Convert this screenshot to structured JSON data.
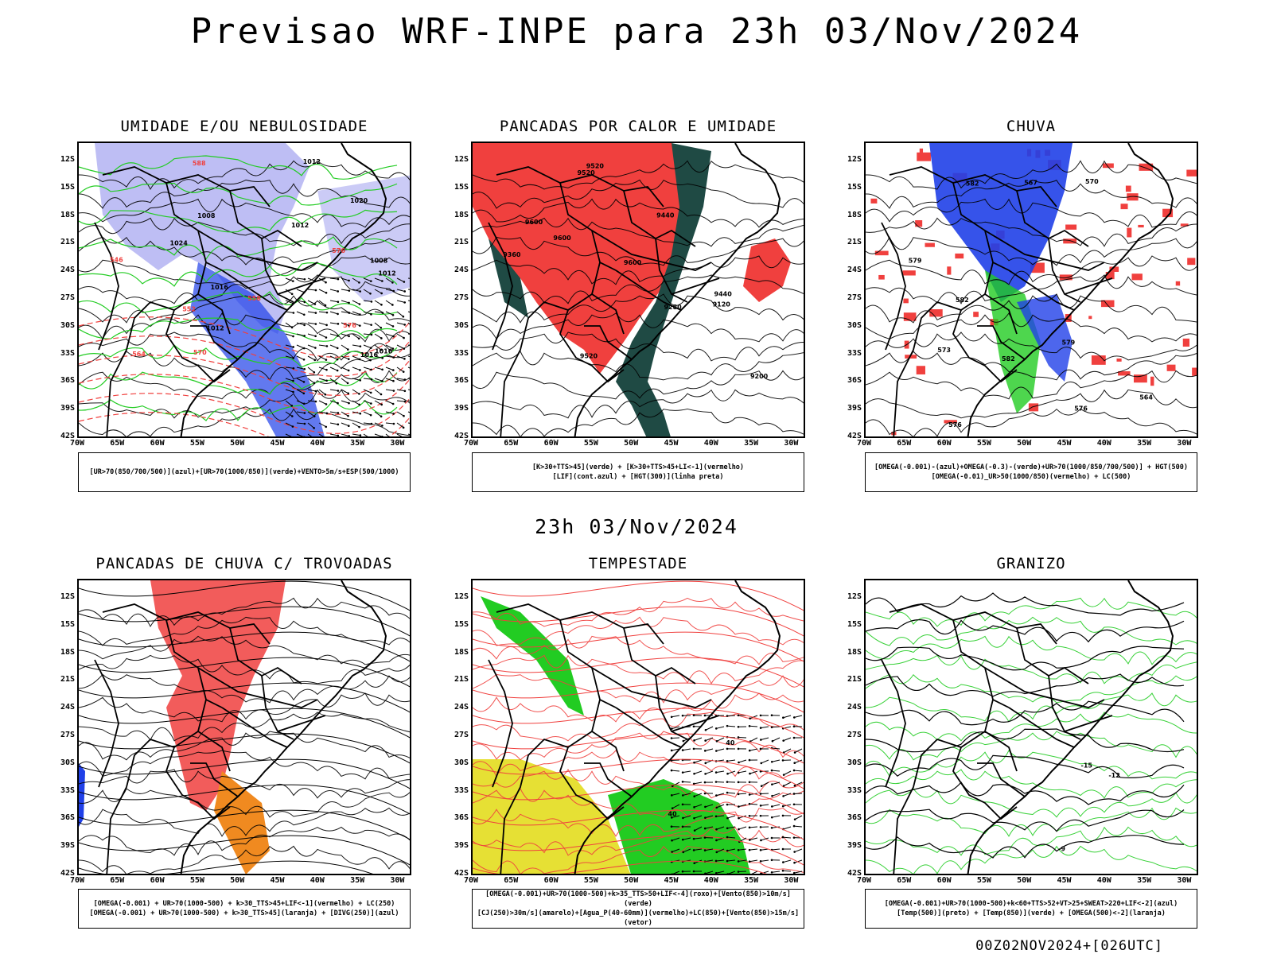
{
  "header": {
    "title": "Previsao WRF-INPE  para 23h 03/Nov/2024",
    "subtitle": "23h 03/Nov/2024"
  },
  "axes": {
    "lat_labels": [
      "12S",
      "15S",
      "18S",
      "21S",
      "24S",
      "27S",
      "30S",
      "33S",
      "36S",
      "39S",
      "42S"
    ],
    "lon_labels": [
      "70W",
      "65W",
      "60W",
      "55W",
      "50W",
      "45W",
      "40W",
      "35W",
      "30W"
    ]
  },
  "panels": [
    {
      "title": "UMIDADE E/OU NEBULOSIDADE",
      "legend": [
        "[UR>70(850/700/500)](azul)+[UR>70(1000/850)](verde)+VENTO>5m/s+ESP(500/1000)"
      ],
      "contour_labels": [
        "1008",
        "1008",
        "1012",
        "1012",
        "1016",
        "1016",
        "1012",
        "1012",
        "1016",
        "1020",
        "1024",
        "576",
        "576",
        "570",
        "564",
        "558",
        "552",
        "546",
        "588"
      ]
    },
    {
      "title": "PANCADAS POR CALOR E UMIDADE",
      "legend": [
        "[K>30+TTS>45](verde) + [K>30+TTS>45+LI<-1](vermelho)",
        "[LIF](cont.azul) + [HGT(300)](linha preta)"
      ],
      "contour_labels": [
        "9600",
        "9600",
        "9600",
        "9520",
        "9520",
        "9440",
        "9360",
        "9280",
        "9200",
        "9120",
        "9520",
        "9440"
      ]
    },
    {
      "title": "CHUVA",
      "legend": [
        "[OMEGA(-0.001)-(azul)+OMEGA(-0.3)-(verde)+UR>70(1000/850/700/500)] + HGT(500)",
        "[OMEGA(-0.01)_UR>50(1000/850)(vermelho) + LC(500)"
      ],
      "contour_labels": [
        "579",
        "582",
        "582",
        "579",
        "576",
        "573",
        "570",
        "567",
        "564",
        "576",
        "582"
      ]
    },
    {
      "title": "PANCADAS DE CHUVA C/ TROVOADAS",
      "legend": [
        "[OMEGA(-0.001) + UR>70(1000-500) + k>30_TTS>45+LIF<-1](vermelho) + LC(250)",
        "[OMEGA(-0.001) + UR>70(1000-500) + k>30_TTS>45](laranja) + [DIVG(250)](azul)"
      ],
      "contour_labels": []
    },
    {
      "title": "TEMPESTADE",
      "legend": [
        "[OMEGA(-0.001)+UR>70(1000-500)+k>35_TTS>50+LIF<-4](roxo)+[Vento(850)>10m/s](verde)",
        "[CJ(250)>30m/s](amarelo)+[Agua_P(40-60mm)](vermelho)+LC(850)+[Vento(850)>15m/s](vetor)"
      ],
      "contour_labels": [
        "40",
        "40"
      ]
    },
    {
      "title": "GRANIZO",
      "legend": [
        "[OMEGA(-0.001)+UR>70(1000-500)+k<60+TTS>52+VT>25+SWEAT>220+LIF<-2](azul)",
        "[Temp(500)](preto) + [Temp(850)](verde) + [OMEGA(500)<-2](laranja)"
      ],
      "contour_labels": [
        "-15",
        "-12",
        "-9"
      ]
    }
  ],
  "footer": "00Z02NOV2024+[026UTC]",
  "colors": {
    "red": "#f0403e",
    "blue": "#2040e8",
    "lightblue": "#a8a8f0",
    "green": "#22cc22",
    "darkgreen": "#1f4a44",
    "yellow": "#e6e034",
    "orange": "#f08a20"
  }
}
